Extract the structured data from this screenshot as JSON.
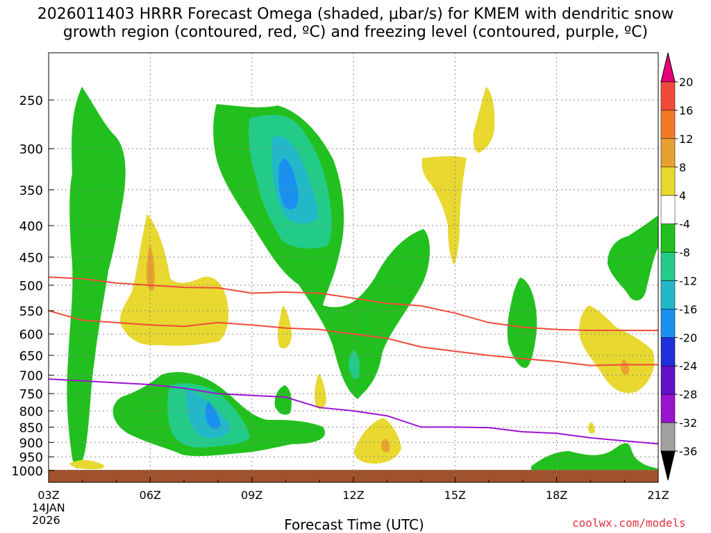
{
  "title_line1": "2026011403 HRRR Forecast Omega (shaded, μbar/s) for KMEM with dendritic snow",
  "title_line2": "growth region (contoured, red, ºC) and freezing level (contoured, purple, ºC)",
  "xlabel": "Forecast Time (UTC)",
  "credit": "coolwx.com/models",
  "colors": {
    "dgz": "#f04a3a",
    "freezing": "#9a14d0",
    "ground": "#a0522d",
    "grid": "#8a8a8a"
  },
  "chart_data": {
    "type": "time-height cross section",
    "x_ticks": [
      "03Z",
      "06Z",
      "09Z",
      "12Z",
      "15Z",
      "18Z",
      "21Z"
    ],
    "x_date": [
      "14JAN",
      "2026"
    ],
    "y_ticks": [
      250,
      300,
      350,
      400,
      450,
      500,
      550,
      600,
      650,
      700,
      750,
      800,
      850,
      900,
      950,
      1000
    ],
    "y_axis": "pressure (hPa), reversed, log scale",
    "colorbar": {
      "labels": [
        20,
        16,
        12,
        8,
        4,
        -4,
        -8,
        -12,
        -16,
        -20,
        -24,
        -28,
        -32,
        -36
      ],
      "colors": [
        "#e8007a",
        "#f04a3a",
        "#f07a28",
        "#e8a030",
        "#e8d830",
        "#ffffff",
        "#22c01e",
        "#22cc88",
        "#22b8c8",
        "#1a90ee",
        "#2030d8",
        "#6010c8",
        "#9a14d0",
        "#a0a0a0",
        "#000000"
      ]
    },
    "dgz_contours": [
      {
        "name": "dgz-top",
        "points": [
          [
            3.0,
            485
          ],
          [
            4.0,
            488
          ],
          [
            5.0,
            496
          ],
          [
            6.0,
            500
          ],
          [
            7.0,
            504
          ],
          [
            8.0,
            505
          ],
          [
            9.0,
            515
          ],
          [
            10.0,
            513
          ],
          [
            11.0,
            515
          ],
          [
            12.0,
            525
          ],
          [
            13.0,
            535
          ],
          [
            14.0,
            540
          ],
          [
            15.0,
            555
          ],
          [
            16.0,
            575
          ],
          [
            17.0,
            585
          ],
          [
            18.0,
            590
          ],
          [
            19.0,
            592
          ],
          [
            20.0,
            592
          ],
          [
            21.0,
            592
          ]
        ]
      },
      {
        "name": "dgz-bottom",
        "points": [
          [
            3.0,
            550
          ],
          [
            4.0,
            570
          ],
          [
            5.0,
            575
          ],
          [
            6.0,
            580
          ],
          [
            7.0,
            583
          ],
          [
            8.0,
            575
          ],
          [
            9.0,
            580
          ],
          [
            10.0,
            587
          ],
          [
            11.0,
            590
          ],
          [
            12.0,
            600
          ],
          [
            13.0,
            610
          ],
          [
            14.0,
            630
          ],
          [
            15.0,
            640
          ],
          [
            16.0,
            650
          ],
          [
            17.0,
            658
          ],
          [
            18.0,
            665
          ],
          [
            19.0,
            675
          ],
          [
            20.0,
            673
          ],
          [
            21.0,
            673
          ]
        ]
      }
    ],
    "freezing_contour": {
      "name": "freezing-level",
      "points": [
        [
          3.0,
          710
        ],
        [
          4.0,
          715
        ],
        [
          5.0,
          720
        ],
        [
          6.0,
          725
        ],
        [
          7.0,
          735
        ],
        [
          8.0,
          750
        ],
        [
          9.0,
          755
        ],
        [
          10.0,
          760
        ],
        [
          11.0,
          790
        ],
        [
          12.0,
          800
        ],
        [
          13.0,
          815
        ],
        [
          14.0,
          850
        ],
        [
          15.0,
          850
        ],
        [
          16.0,
          852
        ],
        [
          17.0,
          865
        ],
        [
          18.0,
          870
        ],
        [
          19.0,
          885
        ],
        [
          20.0,
          895
        ],
        [
          21.0,
          905
        ]
      ]
    }
  }
}
